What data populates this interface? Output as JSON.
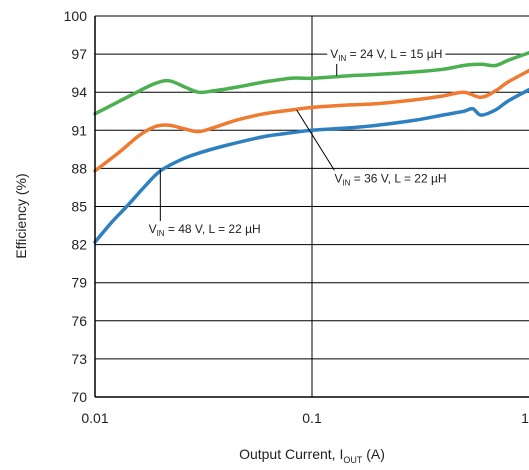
{
  "chart_data": {
    "type": "line",
    "xscale": "log",
    "xlim": [
      0.01,
      1
    ],
    "ylim": [
      70,
      100
    ],
    "grid": true,
    "xlabel": {
      "text": "Output Current, I",
      "sub": "OUT",
      "unit": " (A)"
    },
    "ylabel": "Efficiency (%)",
    "xticks": [
      {
        "value": 0.01,
        "label": "0.01"
      },
      {
        "value": 0.1,
        "label": "0.1"
      },
      {
        "value": 1,
        "label": "1"
      }
    ],
    "yticks": [
      70,
      73,
      76,
      79,
      82,
      85,
      88,
      91,
      94,
      97,
      100
    ],
    "series": [
      {
        "vin": "24 V",
        "inductance": "L = 15 µH",
        "color": "#4cb050",
        "x": [
          0.01,
          0.013,
          0.016,
          0.019,
          0.022,
          0.026,
          0.03,
          0.035,
          0.045,
          0.06,
          0.08,
          0.1,
          0.15,
          0.2,
          0.3,
          0.4,
          0.5,
          0.6,
          0.7,
          0.8,
          1.0
        ],
        "y": [
          92.3,
          93.3,
          94.1,
          94.7,
          94.9,
          94.4,
          94.0,
          94.1,
          94.4,
          94.8,
          95.1,
          95.1,
          95.3,
          95.4,
          95.6,
          95.8,
          96.1,
          96.2,
          96.1,
          96.5,
          97.1
        ]
      },
      {
        "vin": "36 V",
        "inductance": "L = 22 µH",
        "color": "#ee7b30",
        "x": [
          0.01,
          0.013,
          0.016,
          0.019,
          0.022,
          0.026,
          0.03,
          0.035,
          0.045,
          0.06,
          0.08,
          0.1,
          0.15,
          0.2,
          0.3,
          0.4,
          0.5,
          0.6,
          0.7,
          0.8,
          1.0
        ],
        "y": [
          87.8,
          89.3,
          90.6,
          91.3,
          91.4,
          91.1,
          90.9,
          91.2,
          91.8,
          92.3,
          92.6,
          92.8,
          93.0,
          93.1,
          93.4,
          93.7,
          94.0,
          93.6,
          94.1,
          94.8,
          95.7
        ]
      },
      {
        "vin": "48 V",
        "inductance": "L = 22 µH",
        "color": "#2f80c0",
        "x": [
          0.01,
          0.012,
          0.014,
          0.017,
          0.02,
          0.025,
          0.03,
          0.04,
          0.06,
          0.08,
          0.1,
          0.15,
          0.2,
          0.3,
          0.4,
          0.5,
          0.55,
          0.6,
          0.7,
          0.8,
          1.0
        ],
        "y": [
          82.2,
          83.8,
          85.0,
          86.6,
          87.8,
          88.7,
          89.2,
          89.8,
          90.5,
          90.8,
          91.0,
          91.2,
          91.4,
          91.8,
          92.2,
          92.5,
          92.7,
          92.2,
          92.6,
          93.3,
          94.2
        ]
      }
    ],
    "annotations": [
      {
        "series": 0,
        "sub": "IN",
        "at": [
          0.22,
          96.7
        ],
        "leader": [
          0.13,
          95.3
        ]
      },
      {
        "series": 1,
        "sub": "IN",
        "at": [
          0.23,
          86.9
        ],
        "leader": [
          0.085,
          92.6
        ]
      },
      {
        "series": 2,
        "sub": "IN",
        "at": [
          0.032,
          82.9
        ],
        "leader": [
          0.02,
          87.9
        ]
      }
    ]
  }
}
